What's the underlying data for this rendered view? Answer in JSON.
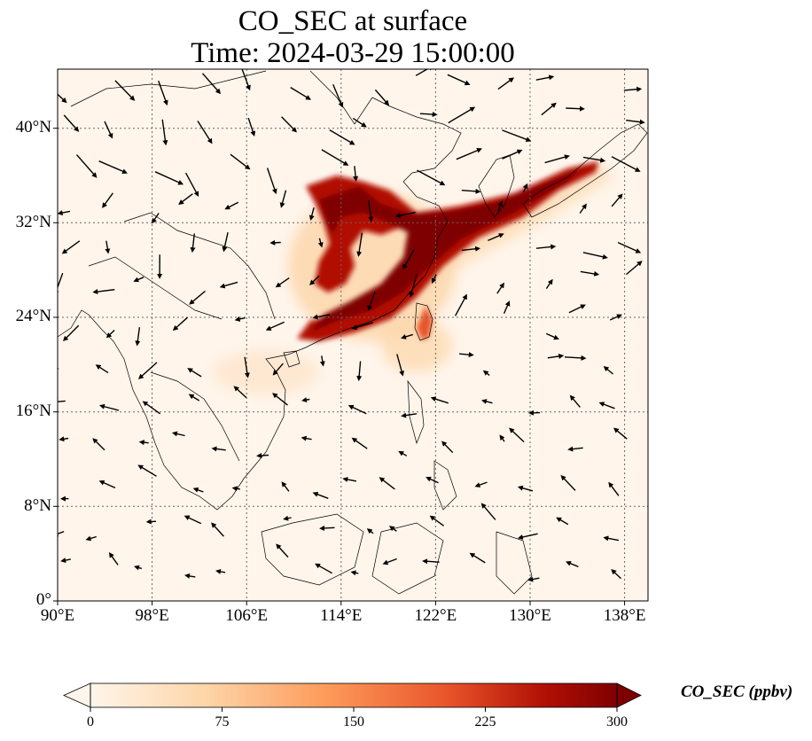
{
  "title_line1": "CO_SEC at surface",
  "title_line2": "Time: 2024-03-29 15:00:00",
  "lat_labels": [
    "40°N",
    "32°N",
    "24°N",
    "16°N",
    "8°N",
    "0°"
  ],
  "lon_labels": [
    "90°E",
    "98°E",
    "106°E",
    "114°E",
    "122°E",
    "130°E",
    "138°E"
  ],
  "colorbar": {
    "title": "CO_SEC (ppbv)",
    "ticks": [
      "0",
      "75",
      "150",
      "225",
      "300"
    ],
    "min": 0,
    "max": 300,
    "extend": "both",
    "colors": [
      "#fff5eb",
      "#fdd5a8",
      "#fd9a5a",
      "#e8542a",
      "#b11005",
      "#7f0000"
    ]
  },
  "map": {
    "lon_range": [
      90,
      140
    ],
    "lat_range": [
      0,
      45
    ],
    "gridlines": "dotted",
    "projection": "PlateCarree"
  }
}
